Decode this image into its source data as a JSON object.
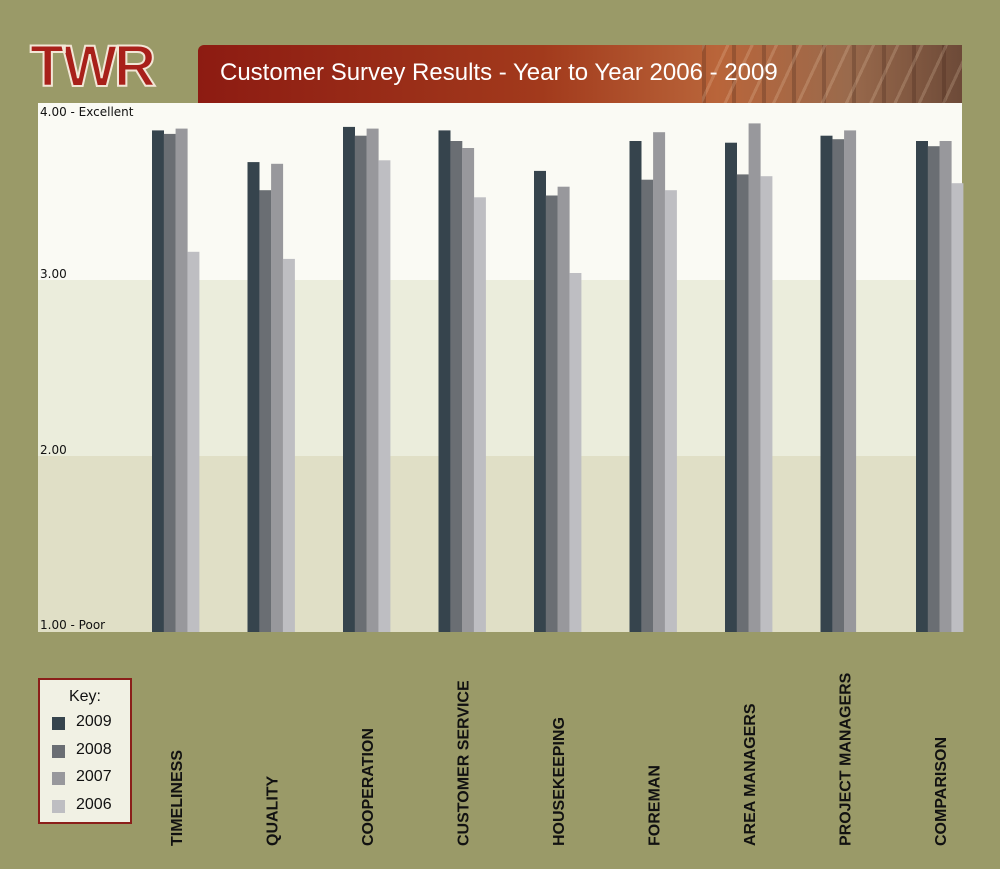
{
  "logo_text": "TWR",
  "chart_data": {
    "type": "bar",
    "title": "Customer Survey Results - Year to Year 2006 - 2009",
    "xlabel": "",
    "ylabel": "",
    "ylim": [
      1,
      4
    ],
    "yticks": [
      {
        "value": 4,
        "label": "4.00 - Excellent"
      },
      {
        "value": 3,
        "label": "3.00"
      },
      {
        "value": 2,
        "label": "2.00"
      },
      {
        "value": 1,
        "label": "1.00 - Poor"
      }
    ],
    "categories": [
      "TIMELINESS",
      "QUALITY",
      "COOPERATION",
      "CUSTOMER SERVICE",
      "HOUSEKEEPING",
      "FOREMAN",
      "AREA MANAGERS",
      "PROJECT MANAGERS",
      "COMPARISON"
    ],
    "series": [
      {
        "name": "2009",
        "color": "#36444d",
        "values": [
          3.85,
          3.67,
          3.87,
          3.85,
          3.62,
          3.79,
          3.78,
          3.82,
          3.79
        ]
      },
      {
        "name": "2008",
        "color": "#6a6e73",
        "values": [
          3.83,
          3.51,
          3.82,
          3.79,
          3.48,
          3.57,
          3.6,
          3.8,
          3.76
        ]
      },
      {
        "name": "2007",
        "color": "#98989c",
        "values": [
          3.86,
          3.66,
          3.86,
          3.75,
          3.53,
          3.84,
          3.89,
          3.85,
          3.79
        ]
      },
      {
        "name": "2006",
        "color": "#bebec2",
        "values": [
          3.16,
          3.12,
          3.68,
          3.47,
          3.04,
          3.51,
          3.59,
          null,
          3.55
        ]
      }
    ],
    "bands": [
      {
        "from": 3,
        "to": 4,
        "color": "#fafaf4"
      },
      {
        "from": 2,
        "to": 3,
        "color": "#ebeddc"
      },
      {
        "from": 1,
        "to": 2,
        "color": "#e0dfc6"
      }
    ],
    "grid": false,
    "legend": {
      "title": "Key:",
      "position": "bottom-left"
    }
  }
}
